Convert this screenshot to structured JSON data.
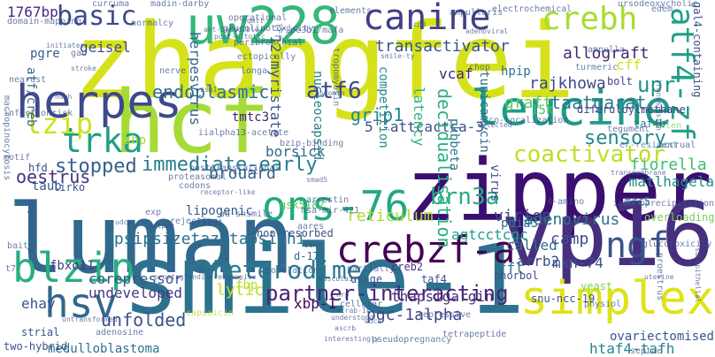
{
  "words": [
    {
      "text": "zhangfei",
      "color": "#d5e21a"
    },
    {
      "text": "zipper",
      "color": "#3b0f70"
    },
    {
      "text": "luman",
      "color": "#31688e"
    },
    {
      "text": "smile-1",
      "color": "#2c728e"
    },
    {
      "text": "vp16",
      "color": "#472f7d"
    },
    {
      "text": "hcf",
      "color": "#a5db36"
    },
    {
      "text": "leucine",
      "color": "#1f9a8a"
    },
    {
      "text": "herpes",
      "color": "#3e4989"
    },
    {
      "text": "uw228",
      "color": "#35b779"
    },
    {
      "text": "simplex",
      "color": "#dde318"
    },
    {
      "text": "crebzf-a",
      "color": "#440154"
    },
    {
      "text": "ons-76",
      "color": "#22a884"
    },
    {
      "text": "blzip",
      "color": "#28ae80"
    },
    {
      "text": "hsv",
      "color": "#31688e"
    },
    {
      "text": "canine",
      "color": "#433e85"
    },
    {
      "text": "heterodimer",
      "color": "#2a788e"
    },
    {
      "text": "atf4-zf",
      "color": "#1fa088"
    },
    {
      "text": "basic",
      "color": "#3e4989"
    },
    {
      "text": "crebh",
      "color": "#a8db34"
    },
    {
      "text": "trka",
      "color": "#1f9e89"
    },
    {
      "text": "lzip",
      "color": "#cde11d"
    },
    {
      "text": "ngf",
      "color": "#3b528b"
    },
    {
      "text": "endoplasmic",
      "color": "#2e6f8e"
    },
    {
      "text": "partner-interacting",
      "color": "#482475"
    },
    {
      "text": "atf6",
      "color": "#404688"
    },
    {
      "text": "stopped",
      "color": "#355f8d"
    },
    {
      "text": "immediate-early",
      "color": "#287c8e"
    },
    {
      "text": "coactivator",
      "color": "#bddf26"
    },
    {
      "text": "sensory",
      "color": "#23888e"
    },
    {
      "text": "brn3a",
      "color": "#26ad81"
    },
    {
      "text": "unfolded",
      "color": "#3b528b"
    },
    {
      "text": "dpsipsizetazetapsiphi",
      "color": "#2c728e"
    },
    {
      "text": "upr",
      "color": "#21918c"
    },
    {
      "text": "transactivator",
      "color": "#3a548c"
    },
    {
      "text": "allograft",
      "color": "#482878"
    },
    {
      "text": "grip1",
      "color": "#24868e"
    },
    {
      "text": "taatgarat",
      "color": "#2a788e"
    },
    {
      "text": "5'-attcactca-3",
      "color": "#3d4d8a"
    },
    {
      "text": "borsick",
      "color": "#306a8e"
    },
    {
      "text": "brouard",
      "color": "#355f8d"
    },
    {
      "text": "latency",
      "color": "#2fb47c"
    },
    {
      "text": "decidualisation",
      "color": "#2ab07f"
    },
    {
      "text": "oestrus",
      "color": "#46327e"
    },
    {
      "text": "competition",
      "color": "#238a8d"
    },
    {
      "text": "tunicamycin",
      "color": "#2d708e"
    },
    {
      "text": "rajkhowa",
      "color": "#3e4989"
    },
    {
      "text": "graft",
      "color": "#5ec962"
    },
    {
      "text": "vcaf",
      "color": "#482677"
    },
    {
      "text": "geisel",
      "color": "#404688"
    },
    {
      "text": "pgre",
      "color": "#34608d"
    },
    {
      "text": "atf/creb",
      "color": "#306a8e"
    },
    {
      "text": "herpesvirus",
      "color": "#31688e"
    },
    {
      "text": "12-myristate",
      "color": "#3a548c"
    },
    {
      "text": "nucleocapsid",
      "color": "#26828e"
    },
    {
      "text": "agtcctcgc",
      "color": "#1fa188"
    },
    {
      "text": "fiorella",
      "color": "#3fbc73"
    },
    {
      "text": "matlhagela",
      "color": "#228c8d"
    },
    {
      "text": "virion",
      "color": "#414487"
    },
    {
      "text": "adenovirus",
      "color": "#2c728e"
    },
    {
      "text": "reticulum",
      "color": "#aadc32"
    },
    {
      "text": "lytic",
      "color": "#c2df23"
    },
    {
      "text": "corepressor",
      "color": "#3b528b"
    },
    {
      "text": "undeveloped",
      "color": "#453781"
    },
    {
      "text": "xbp-1",
      "color": "#440154"
    },
    {
      "text": "pgc-1alpha",
      "color": "#3f4788"
    },
    {
      "text": "thapsigargin",
      "color": "#472c7a"
    },
    {
      "text": "called",
      "color": "#2f6c8e"
    },
    {
      "text": "arrb2",
      "color": "#3d4e8a"
    },
    {
      "text": "mkn-74",
      "color": "#3b528b"
    },
    {
      "text": "ffl",
      "color": "#2a788e"
    },
    {
      "text": "camp",
      "color": "#3d4d8a"
    },
    {
      "text": "htaf4-tafh",
      "color": "#25848e"
    },
    {
      "text": "ehay",
      "color": "#3b528b"
    },
    {
      "text": "taub",
      "color": "#39568c"
    },
    {
      "text": "tmtc3",
      "color": "#482475"
    },
    {
      "text": "fbp",
      "color": "#b5de2b"
    },
    {
      "text": "1767bp",
      "color": "#472a7a"
    },
    {
      "text": "shp",
      "color": "#a2da37"
    },
    {
      "text": "hpip",
      "color": "#2c728e"
    },
    {
      "text": "cff",
      "color": "#d8e219"
    },
    {
      "text": "15k",
      "color": "#48c16e"
    },
    {
      "text": "taf4b",
      "color": "#2a788e"
    },
    {
      "text": "bolt",
      "color": "#404688"
    },
    {
      "text": "pdia3",
      "color": "#2a788e"
    },
    {
      "text": "creb2",
      "color": "#443983"
    },
    {
      "text": "d-17",
      "color": "#31688e"
    },
    {
      "text": "fbxo11",
      "color": "#443983"
    },
    {
      "text": "virus",
      "color": "#3b528b"
    },
    {
      "text": "phorbol",
      "color": "#3b528b"
    },
    {
      "text": "snu-ncc-19",
      "color": "#3b528b"
    },
    {
      "text": "ovariectomised",
      "color": "#39568c"
    },
    {
      "text": "medulloblastoma",
      "color": "#2c728e"
    },
    {
      "text": "two-hybrid",
      "color": "#3b528b"
    },
    {
      "text": "strial",
      "color": "#3b528b"
    },
    {
      "text": "pseudopregnancy",
      "color": "#3b528b"
    },
    {
      "text": "tetrapeptide",
      "color": "#3b528b"
    },
    {
      "text": "diferuloylmethane",
      "color": "#433e85"
    },
    {
      "text": "gsk5182",
      "color": "#5ec962"
    },
    {
      "text": "lipogenic",
      "color": "#355f8d"
    },
    {
      "text": "lirko",
      "color": "#3b528b"
    },
    {
      "text": "hfd",
      "color": "#3b528b"
    },
    {
      "text": "non-resorbed",
      "color": "#3b528b"
    },
    {
      "text": "usage",
      "color": "#3b528b"
    },
    {
      "text": "repressive",
      "color": "#3b528b"
    },
    {
      "text": "taf4",
      "color": "#3b528b"
    },
    {
      "text": "yeast",
      "color": "#7ad151"
    },
    {
      "text": "overloading",
      "color": "#7ad151"
    },
    {
      "text": "mrc5",
      "color": "#2a788e"
    },
    {
      "text": "immunoprecipitation",
      "color": "#3b528b"
    },
    {
      "text": "glucotoxicity",
      "color": "#3b528b"
    },
    {
      "text": "gal4-containing",
      "color": "#3b528b"
    },
    {
      "text": "edem",
      "color": "#3b528b"
    },
    {
      "text": "allen",
      "color": "#7ad151"
    },
    {
      "text": "tegument",
      "color": "#3b528b"
    },
    {
      "text": "er-resident",
      "color": "#2a788e"
    },
    {
      "text": "accrual",
      "color": "#3b528b"
    },
    {
      "text": "pkbbeta",
      "color": "#2a788e"
    },
    {
      "text": "codons",
      "color": "#3b528b"
    },
    {
      "text": "13-acetate",
      "color": "#3b528b"
    },
    {
      "text": "proteasomal",
      "color": "#3b528b"
    },
    {
      "text": "posttranslational",
      "color": "#3b528b"
    },
    {
      "text": "lrf",
      "color": "#3b528b"
    },
    {
      "text": "arrestin",
      "color": "#3b528b"
    },
    {
      "text": "hsa-mir-421",
      "color": "#3b528b"
    },
    {
      "text": "aares",
      "color": "#3b528b"
    },
    {
      "text": "smad5",
      "color": "#3b528b"
    },
    {
      "text": "host",
      "color": "#3b528b"
    },
    {
      "text": "rejecting",
      "color": "#3b528b"
    },
    {
      "text": "bait",
      "color": "#3b528b"
    },
    {
      "text": "modulation",
      "color": "#3b528b"
    },
    {
      "text": "partially",
      "color": "#3b528b"
    },
    {
      "text": "nerve",
      "color": "#3b528b"
    },
    {
      "text": "iialpha",
      "color": "#3b528b"
    },
    {
      "text": "motif",
      "color": "#3b528b"
    },
    {
      "text": "exp",
      "color": "#3b528b"
    },
    {
      "text": "gac",
      "color": "#3b528b"
    },
    {
      "text": "t7",
      "color": "#3b528b"
    },
    {
      "text": "nearest",
      "color": "#3b528b"
    },
    {
      "text": "macropinocytosis",
      "color": "#3b528b"
    },
    {
      "text": "domain-mapping",
      "color": "#3b528b"
    },
    {
      "text": "normalcy",
      "color": "#3b528b"
    },
    {
      "text": "operational",
      "color": "#3b528b"
    },
    {
      "text": "glucolipotoxicity",
      "color": "#3b528b"
    },
    {
      "text": "ripe3b1/mafa",
      "color": "#3b528b"
    },
    {
      "text": "elements",
      "color": "#3b528b"
    },
    {
      "text": "ampullaris",
      "color": "#3b528b"
    },
    {
      "text": "electrochemical",
      "color": "#3b528b"
    },
    {
      "text": "ursodeoxycholic",
      "color": "#3b528b"
    },
    {
      "text": "curcuma",
      "color": "#3b528b"
    },
    {
      "text": "madin-darby",
      "color": "#3b528b"
    },
    {
      "text": "peribronchial",
      "color": "#3b528b"
    },
    {
      "text": "ectopically",
      "color": "#3b528b"
    },
    {
      "text": "longa",
      "color": "#3b528b"
    },
    {
      "text": "chop",
      "color": "#3b528b"
    },
    {
      "text": "tropomyosin",
      "color": "#3b528b"
    },
    {
      "text": "turmeric",
      "color": "#3b528b"
    },
    {
      "text": "co-localization",
      "color": "#3b528b"
    },
    {
      "text": "ampulla",
      "color": "#3b528b"
    },
    {
      "text": "bzip-binding",
      "color": "#3b528b"
    },
    {
      "text": "viral",
      "color": "#3b528b"
    },
    {
      "text": "4-amino",
      "color": "#3b528b"
    },
    {
      "text": "ad-shsmile",
      "color": "#3b528b"
    },
    {
      "text": "physiol",
      "color": "#3b528b"
    },
    {
      "text": "cellular",
      "color": "#3b528b"
    },
    {
      "text": "adenosine",
      "color": "#3b528b"
    },
    {
      "text": "septae",
      "color": "#3b528b"
    },
    {
      "text": "proestrus",
      "color": "#3b528b"
    },
    {
      "text": "infectionrisk",
      "color": "#3b528b"
    },
    {
      "text": "capsaicin",
      "color": "#b5de2b"
    },
    {
      "text": "adenoviral",
      "color": "#3b528b"
    },
    {
      "text": "uterine",
      "color": "#3b528b"
    },
    {
      "text": "vasculaire",
      "color": "#3b528b"
    },
    {
      "text": "physically",
      "color": "#3b528b"
    },
    {
      "text": "untransformed",
      "color": "#3b528b"
    },
    {
      "text": "understood",
      "color": "#3b528b"
    },
    {
      "text": "interestingly",
      "color": "#3b528b"
    },
    {
      "text": "prostaglandin-responsive",
      "color": "#3b528b"
    },
    {
      "text": "udca",
      "color": "#3b528b"
    },
    {
      "text": "ndeh",
      "color": "#3b528b"
    },
    {
      "text": "initiates",
      "color": "#3b528b"
    },
    {
      "text": "ant-inducible",
      "color": "#3b528b"
    },
    {
      "text": "post-mitotic",
      "color": "#3b528b"
    },
    {
      "text": "nqmll",
      "color": "#3b528b"
    },
    {
      "text": "icp0",
      "color": "#3b528b"
    },
    {
      "text": "transmembrane",
      "color": "#3b528b"
    },
    {
      "text": "crist",
      "color": "#3b528b"
    },
    {
      "text": "stroke",
      "color": "#3b528b"
    },
    {
      "text": "zsb1",
      "color": "#3b528b"
    },
    {
      "text": "abdomin",
      "color": "#3b528b"
    },
    {
      "text": "selected",
      "color": "#3b528b"
    },
    {
      "text": "smile-ty",
      "color": "#3b528b"
    },
    {
      "text": "receptor-like",
      "color": "#3b528b"
    },
    {
      "text": "wdck",
      "color": "#3b528b"
    },
    {
      "text": "zinc",
      "color": "#3b528b"
    },
    {
      "text": "nrp",
      "color": "#3b528b"
    },
    {
      "text": "transmission",
      "color": "#3b528b"
    },
    {
      "text": "subepithelial",
      "color": "#3b528b"
    },
    {
      "text": "ecrab-1c",
      "color": "#3b528b"
    },
    {
      "text": "ascrb",
      "color": "#3b528b"
    },
    {
      "text": "adipog",
      "color": "#3b528b"
    }
  ]
}
